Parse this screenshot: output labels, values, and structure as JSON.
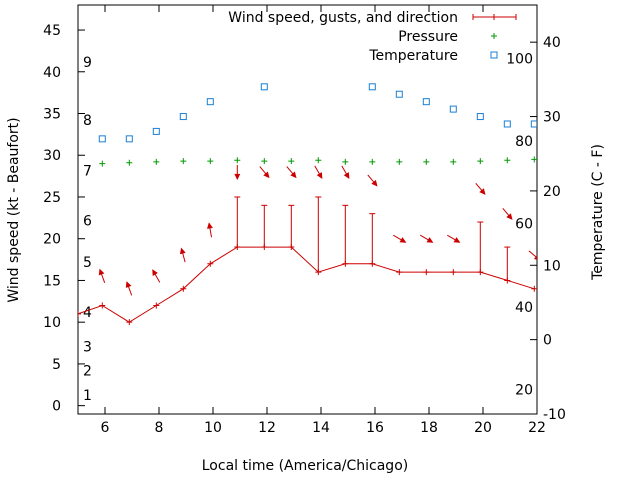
{
  "chart_data": {
    "type": "line",
    "xlabel": "Local time (America/Chicago)",
    "ylabel_left": "Wind speed (kt - Beaufort)",
    "ylabel_right": "Temperature (C - F)",
    "x_range": [
      5,
      22
    ],
    "y_left_range": [
      -1,
      48
    ],
    "y_right_range": [
      -10,
      45
    ],
    "x_ticks": [
      6,
      8,
      10,
      12,
      14,
      16,
      18,
      20,
      22
    ],
    "y_left_ticks": [
      0,
      5,
      10,
      15,
      20,
      25,
      30,
      35,
      40,
      45
    ],
    "y_right_ticks": [
      -10,
      0,
      10,
      20,
      30,
      40
    ],
    "beaufort_labels": [
      {
        "label": "1",
        "kt": 1.3
      },
      {
        "label": "2",
        "kt": 4.2
      },
      {
        "label": "3",
        "kt": 7.1
      },
      {
        "label": "4",
        "kt": 11.2
      },
      {
        "label": "5",
        "kt": 17.2
      },
      {
        "label": "6",
        "kt": 22.2
      },
      {
        "label": "7",
        "kt": 28.2
      },
      {
        "label": "8",
        "kt": 34.2
      },
      {
        "label": "9",
        "kt": 41.2
      }
    ],
    "fahrenheit_labels": [
      {
        "label": "20",
        "celsius": -6.7
      },
      {
        "label": "40",
        "celsius": 4.4
      },
      {
        "label": "60",
        "celsius": 15.6
      },
      {
        "label": "80",
        "celsius": 26.7
      },
      {
        "label": "100",
        "celsius": 37.8
      }
    ],
    "legend": {
      "position": "top-right",
      "entries": [
        "Wind speed, gusts, and direction",
        "Pressure",
        "Temperature"
      ]
    },
    "colors": {
      "wind": "#cc0000",
      "pressure": "#009900",
      "temperature": "#1a7fd4",
      "axis": "#000000"
    },
    "series": [
      {
        "name": "Wind speed, gusts, and direction",
        "x": [
          5,
          5.9,
          6.9,
          7.9,
          8.9,
          9.9,
          10.9,
          11.9,
          12.9,
          13.9,
          14.9,
          15.9,
          16.9,
          17.9,
          18.9,
          19.9,
          20.9,
          21.9
        ],
        "speed": [
          11,
          12,
          10,
          12,
          14,
          17,
          19,
          19,
          19,
          16,
          17,
          17,
          16,
          16,
          16,
          16,
          15,
          14
        ],
        "gust": [
          null,
          null,
          null,
          null,
          null,
          null,
          25,
          24,
          24,
          25,
          24,
          23,
          null,
          null,
          null,
          22,
          19,
          null
        ],
        "arrow_x": [
          5.9,
          6.9,
          7.9,
          8.9,
          9.9,
          10.9,
          11.9,
          12.9,
          13.9,
          14.9,
          15.9,
          16.9,
          17.9,
          18.9,
          19.9,
          20.9,
          21.9
        ],
        "arrow_y": [
          15.5,
          14.0,
          15.5,
          18.0,
          21.0,
          28.0,
          28.0,
          28.0,
          28.0,
          28.0,
          27.0,
          20.0,
          20.0,
          20.0,
          26.0,
          23.0,
          18.0
        ],
        "direction_deg": [
          340,
          340,
          330,
          345,
          350,
          180,
          140,
          140,
          150,
          150,
          140,
          120,
          120,
          120,
          140,
          140,
          130
        ]
      },
      {
        "name": "Pressure",
        "x": [
          5.9,
          6.9,
          7.9,
          8.9,
          9.9,
          10.9,
          11.9,
          12.9,
          13.9,
          14.9,
          15.9,
          16.9,
          17.9,
          18.9,
          19.9,
          20.9,
          21.9
        ],
        "y": [
          29.0,
          29.1,
          29.2,
          29.3,
          29.3,
          29.4,
          29.3,
          29.3,
          29.4,
          29.2,
          29.2,
          29.2,
          29.2,
          29.2,
          29.3,
          29.4,
          29.5
        ]
      },
      {
        "name": "Temperature",
        "x": [
          5.9,
          6.9,
          7.9,
          8.9,
          9.9,
          11.9,
          15.9,
          16.9,
          17.9,
          18.9,
          19.9,
          20.9,
          21.9
        ],
        "y": [
          27,
          27,
          28,
          30,
          32,
          34,
          34,
          33,
          32,
          31,
          30,
          29,
          29
        ]
      }
    ]
  }
}
